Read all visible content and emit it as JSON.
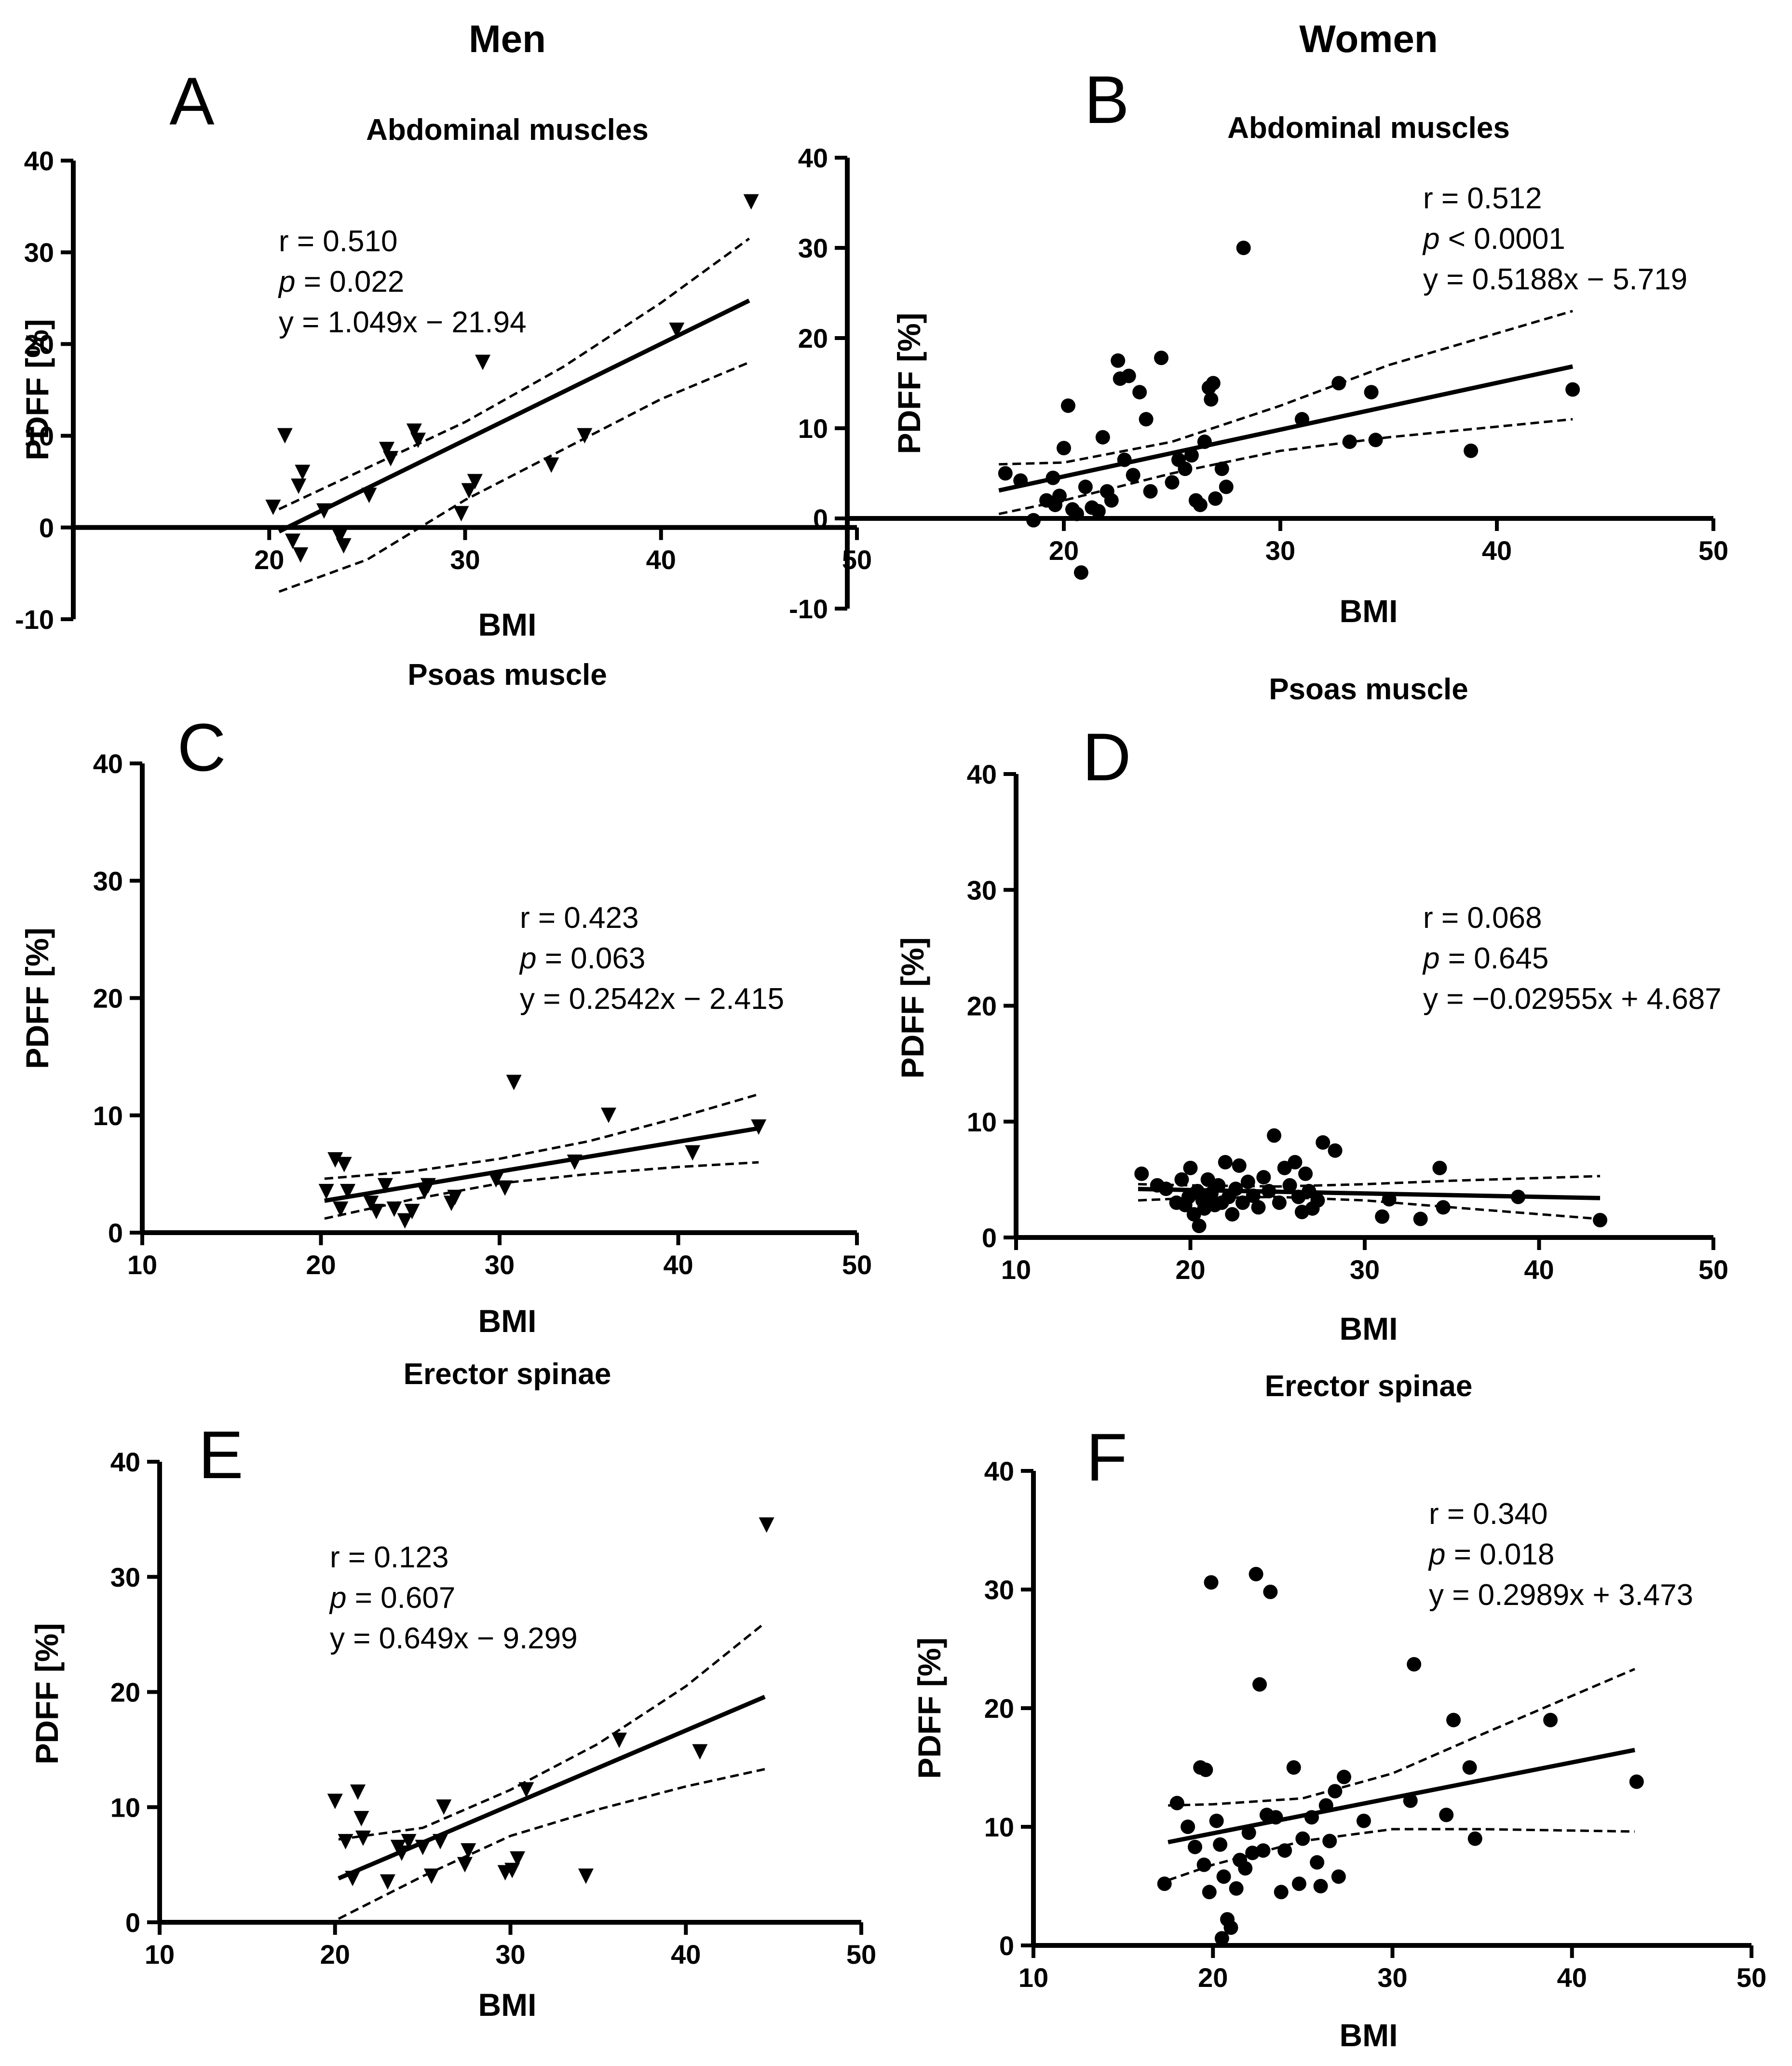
{
  "columns": {
    "left": "Men",
    "right": "Women"
  },
  "chart_data": [
    {
      "type": "scatter",
      "panel": "A",
      "title": "Abdominal muscles",
      "xlabel": "BMI",
      "ylabel": "PDFF  [%]",
      "xlim": [
        10,
        50
      ],
      "ylim": [
        -10,
        40
      ],
      "xticks": [
        "20",
        "30",
        "40",
        "50"
      ],
      "yticks": [
        "-10",
        "0",
        "10",
        "20",
        "30",
        "40"
      ],
      "marker": "triangle-down",
      "stats": {
        "r": "r = 0.510",
        "p_label": "p",
        "p_rest": " = 0.022",
        "eq": "y = 1.049x − 21.94"
      },
      "fit": {
        "slope": 1.049,
        "intercept": -21.94,
        "x_range": [
          20.5,
          44.5
        ]
      },
      "ci_upper": [
        [
          20.5,
          2.0
        ],
        [
          25,
          6.5
        ],
        [
          30,
          11.5
        ],
        [
          35,
          17.5
        ],
        [
          40,
          24.5
        ],
        [
          44.5,
          31.5
        ]
      ],
      "ci_lower": [
        [
          20.5,
          -7.0
        ],
        [
          25,
          -3.5
        ],
        [
          30,
          3.0
        ],
        [
          35,
          8.5
        ],
        [
          40,
          14.0
        ],
        [
          44.5,
          18.0
        ]
      ],
      "points": [
        [
          20.2,
          2.2
        ],
        [
          20.8,
          10.0
        ],
        [
          21.2,
          -1.5
        ],
        [
          21.5,
          4.5
        ],
        [
          21.7,
          6.0
        ],
        [
          21.6,
          -3.0
        ],
        [
          22.8,
          1.8
        ],
        [
          23.6,
          -1.0
        ],
        [
          23.8,
          -2.0
        ],
        [
          25.1,
          3.5
        ],
        [
          26.0,
          8.5
        ],
        [
          26.2,
          7.5
        ],
        [
          27.4,
          10.5
        ],
        [
          27.6,
          9.5
        ],
        [
          29.8,
          1.5
        ],
        [
          30.2,
          4.0
        ],
        [
          30.5,
          5.0
        ],
        [
          30.9,
          18.0
        ],
        [
          34.4,
          6.8
        ],
        [
          36.1,
          10.0
        ],
        [
          40.8,
          21.5
        ],
        [
          44.6,
          35.5
        ]
      ]
    },
    {
      "type": "scatter",
      "panel": "B",
      "title": "Abdominal muscles",
      "xlabel": "BMI",
      "ylabel": "PDFF  [%]",
      "xlim": [
        10,
        50
      ],
      "ylim": [
        -10,
        40
      ],
      "xticks": [
        "20",
        "30",
        "40",
        "50"
      ],
      "yticks": [
        "-10",
        "0",
        "10",
        "20",
        "30",
        "40"
      ],
      "marker": "circle",
      "stats": {
        "r": "r = 0.512",
        "p_label": "p",
        "p_rest": " < 0.0001",
        "eq": "y = 0.5188x − 5.719"
      },
      "fit": {
        "slope": 0.5188,
        "intercept": -5.719,
        "x_range": [
          17,
          43.5
        ]
      },
      "ci_upper": [
        [
          17,
          6.0
        ],
        [
          20,
          6.2
        ],
        [
          25,
          8.5
        ],
        [
          30,
          12.5
        ],
        [
          35,
          17.0
        ],
        [
          43.5,
          23.0
        ]
      ],
      "ci_lower": [
        [
          17,
          0.5
        ],
        [
          20,
          2.0
        ],
        [
          25,
          5.0
        ],
        [
          30,
          7.5
        ],
        [
          35,
          9.0
        ],
        [
          43.5,
          11.0
        ]
      ],
      "points": [
        [
          17.3,
          5.0
        ],
        [
          18.0,
          4.2
        ],
        [
          18.6,
          -0.2
        ],
        [
          19.2,
          2.0
        ],
        [
          19.5,
          4.5
        ],
        [
          19.6,
          1.5
        ],
        [
          19.8,
          2.5
        ],
        [
          20.0,
          7.8
        ],
        [
          20.2,
          12.5
        ],
        [
          20.4,
          1.0
        ],
        [
          20.6,
          0.5
        ],
        [
          20.8,
          -6.0
        ],
        [
          21.0,
          3.5
        ],
        [
          21.3,
          1.2
        ],
        [
          21.6,
          0.8
        ],
        [
          21.8,
          9.0
        ],
        [
          22.0,
          3.0
        ],
        [
          22.2,
          2.0
        ],
        [
          22.5,
          17.5
        ],
        [
          22.6,
          15.5
        ],
        [
          22.8,
          6.5
        ],
        [
          23.0,
          15.8
        ],
        [
          23.2,
          4.8
        ],
        [
          23.5,
          14.0
        ],
        [
          23.8,
          11.0
        ],
        [
          24.0,
          3.0
        ],
        [
          24.5,
          17.8
        ],
        [
          25.0,
          4.0
        ],
        [
          25.3,
          6.5
        ],
        [
          25.6,
          5.5
        ],
        [
          25.9,
          7.0
        ],
        [
          26.1,
          2.0
        ],
        [
          26.3,
          1.5
        ],
        [
          26.5,
          8.5
        ],
        [
          26.7,
          14.5
        ],
        [
          26.8,
          13.2
        ],
        [
          26.9,
          15.0
        ],
        [
          27.0,
          2.2
        ],
        [
          27.3,
          5.5
        ],
        [
          27.5,
          3.5
        ],
        [
          28.3,
          30.0
        ],
        [
          31.0,
          11.0
        ],
        [
          32.7,
          15.0
        ],
        [
          33.2,
          8.5
        ],
        [
          34.2,
          14.0
        ],
        [
          34.4,
          8.7
        ],
        [
          38.8,
          7.5
        ],
        [
          43.5,
          14.3
        ]
      ]
    },
    {
      "type": "scatter",
      "panel": "C",
      "title": "Psoas muscle",
      "xlabel": "BMI",
      "ylabel": "PDFF  [%]",
      "xlim": [
        10,
        50
      ],
      "ylim": [
        0,
        40
      ],
      "xticks": [
        "10",
        "20",
        "30",
        "40",
        "50"
      ],
      "yticks": [
        "0",
        "10",
        "20",
        "30",
        "40"
      ],
      "marker": "triangle-down",
      "stats": {
        "r": "r = 0.423",
        "p_label": "p",
        "p_rest": " = 0.063",
        "eq": "y = 0.2542x − 2.415"
      },
      "fit": {
        "slope": 0.2542,
        "intercept": -2.415,
        "x_range": [
          20.2,
          44.5
        ]
      },
      "ci_upper": [
        [
          20.2,
          4.6
        ],
        [
          25,
          5.2
        ],
        [
          30,
          6.3
        ],
        [
          35,
          7.8
        ],
        [
          40,
          9.8
        ],
        [
          44.5,
          11.8
        ]
      ],
      "ci_lower": [
        [
          20.2,
          1.2
        ],
        [
          25,
          2.8
        ],
        [
          30,
          4.2
        ],
        [
          35,
          5.0
        ],
        [
          40,
          5.6
        ],
        [
          44.5,
          6.0
        ]
      ],
      "points": [
        [
          20.3,
          3.5
        ],
        [
          20.8,
          6.2
        ],
        [
          21.1,
          2.0
        ],
        [
          21.3,
          5.8
        ],
        [
          21.5,
          3.5
        ],
        [
          22.8,
          2.5
        ],
        [
          23.1,
          1.8
        ],
        [
          23.6,
          4.0
        ],
        [
          24.1,
          2.0
        ],
        [
          24.7,
          1.0
        ],
        [
          25.1,
          1.8
        ],
        [
          25.8,
          3.5
        ],
        [
          26.0,
          4.0
        ],
        [
          27.3,
          2.5
        ],
        [
          27.5,
          3.0
        ],
        [
          29.8,
          4.5
        ],
        [
          30.3,
          3.8
        ],
        [
          30.8,
          12.8
        ],
        [
          34.2,
          6.0
        ],
        [
          36.1,
          10.0
        ],
        [
          40.8,
          6.8
        ],
        [
          44.5,
          9.0
        ]
      ]
    },
    {
      "type": "scatter",
      "panel": "D",
      "title": "Psoas muscle",
      "xlabel": "BMI",
      "ylabel": "PDFF  [%]",
      "xlim": [
        10,
        50
      ],
      "ylim": [
        0,
        40
      ],
      "xticks": [
        "10",
        "20",
        "30",
        "40",
        "50"
      ],
      "yticks": [
        "0",
        "10",
        "20",
        "30",
        "40"
      ],
      "marker": "circle",
      "stats": {
        "r": "r = 0.068",
        "p_label": "p",
        "p_rest": " = 0.645",
        "eq": "y = −0.02955x + 4.687"
      },
      "fit": {
        "slope": -0.02955,
        "intercept": 4.687,
        "x_range": [
          17,
          43.5
        ]
      },
      "ci_upper": [
        [
          17,
          4.6
        ],
        [
          20,
          4.5
        ],
        [
          25,
          4.4
        ],
        [
          30,
          4.6
        ],
        [
          35,
          4.9
        ],
        [
          43.5,
          5.3
        ]
      ],
      "ci_lower": [
        [
          17,
          3.2
        ],
        [
          20,
          3.4
        ],
        [
          25,
          3.5
        ],
        [
          30,
          3.2
        ],
        [
          35,
          2.6
        ],
        [
          43.5,
          1.6
        ]
      ],
      "points": [
        [
          17.2,
          5.5
        ],
        [
          18.1,
          4.5
        ],
        [
          18.6,
          4.2
        ],
        [
          19.2,
          3.0
        ],
        [
          19.5,
          5.0
        ],
        [
          19.7,
          2.8
        ],
        [
          19.9,
          3.5
        ],
        [
          20.0,
          6.0
        ],
        [
          20.2,
          2.0
        ],
        [
          20.4,
          4.0
        ],
        [
          20.5,
          1.0
        ],
        [
          20.7,
          3.2
        ],
        [
          20.8,
          2.5
        ],
        [
          21.0,
          5.0
        ],
        [
          21.2,
          3.8
        ],
        [
          21.4,
          2.8
        ],
        [
          21.6,
          4.5
        ],
        [
          21.8,
          3.0
        ],
        [
          22.0,
          6.5
        ],
        [
          22.2,
          3.5
        ],
        [
          22.4,
          2.0
        ],
        [
          22.6,
          4.2
        ],
        [
          22.8,
          6.2
        ],
        [
          23.0,
          3.0
        ],
        [
          23.3,
          4.8
        ],
        [
          23.6,
          3.6
        ],
        [
          23.9,
          2.6
        ],
        [
          24.2,
          5.2
        ],
        [
          24.5,
          4.0
        ],
        [
          24.8,
          8.8
        ],
        [
          25.1,
          3.0
        ],
        [
          25.4,
          6.0
        ],
        [
          25.7,
          4.5
        ],
        [
          26.0,
          6.5
        ],
        [
          26.2,
          3.5
        ],
        [
          26.4,
          2.2
        ],
        [
          26.6,
          5.5
        ],
        [
          26.8,
          4.0
        ],
        [
          27.0,
          2.5
        ],
        [
          27.3,
          3.2
        ],
        [
          27.6,
          8.2
        ],
        [
          28.3,
          7.5
        ],
        [
          31.0,
          1.8
        ],
        [
          31.4,
          3.3
        ],
        [
          33.2,
          1.6
        ],
        [
          34.3,
          6.0
        ],
        [
          34.5,
          2.6
        ],
        [
          38.8,
          3.5
        ],
        [
          43.5,
          1.5
        ]
      ]
    },
    {
      "type": "scatter",
      "panel": "E",
      "title": "Erector spinae",
      "xlabel": "BMI",
      "ylabel": "PDFF  [%]",
      "xlim": [
        10,
        50
      ],
      "ylim": [
        0,
        40
      ],
      "xticks": [
        "10",
        "20",
        "30",
        "40",
        "50"
      ],
      "yticks": [
        "0",
        "10",
        "20",
        "30",
        "40"
      ],
      "marker": "triangle-down",
      "stats": {
        "r": "r = 0.123",
        "p_label": "p",
        "p_rest": " = 0.607",
        "eq": "y = 0.649x − 9.299"
      },
      "fit": {
        "slope": 0.649,
        "intercept": -9.299,
        "x_range": [
          20.2,
          44.5
        ]
      },
      "ci_upper": [
        [
          20.2,
          7.2
        ],
        [
          25,
          8.2
        ],
        [
          30,
          11.5
        ],
        [
          35,
          15.5
        ],
        [
          40,
          20.5
        ],
        [
          44.5,
          26.0
        ]
      ],
      "ci_lower": [
        [
          20.2,
          0.3
        ],
        [
          25,
          4.0
        ],
        [
          30,
          7.5
        ],
        [
          35,
          9.8
        ],
        [
          40,
          11.8
        ],
        [
          44.5,
          13.3
        ]
      ],
      "points": [
        [
          20.0,
          10.5
        ],
        [
          20.6,
          7.0
        ],
        [
          21.0,
          3.8
        ],
        [
          21.3,
          11.3
        ],
        [
          21.5,
          9.0
        ],
        [
          21.6,
          7.3
        ],
        [
          23.0,
          3.5
        ],
        [
          23.6,
          6.5
        ],
        [
          23.8,
          6.0
        ],
        [
          24.2,
          7.0
        ],
        [
          25.0,
          6.5
        ],
        [
          25.5,
          4.0
        ],
        [
          26.0,
          7.0
        ],
        [
          26.2,
          10.0
        ],
        [
          27.4,
          5.0
        ],
        [
          27.6,
          6.2
        ],
        [
          29.7,
          4.3
        ],
        [
          30.1,
          4.5
        ],
        [
          30.4,
          5.5
        ],
        [
          30.9,
          11.5
        ],
        [
          34.3,
          4.0
        ],
        [
          36.2,
          15.8
        ],
        [
          40.8,
          14.8
        ],
        [
          44.6,
          34.5
        ]
      ]
    },
    {
      "type": "scatter",
      "panel": "F",
      "title": "Erector spinae",
      "xlabel": "BMI",
      "ylabel": "PDFF  [%]",
      "xlim": [
        10,
        50
      ],
      "ylim": [
        0,
        40
      ],
      "xticks": [
        "10",
        "20",
        "30",
        "40",
        "50"
      ],
      "yticks": [
        "0",
        "10",
        "20",
        "30",
        "40"
      ],
      "marker": "circle",
      "stats": {
        "r": "r = 0.340",
        "p_label": "p",
        "p_rest": " = 0.018",
        "eq": "y = 0.2989x + 3.473"
      },
      "fit": {
        "slope": 0.2989,
        "intercept": 3.473,
        "x_range": [
          17.5,
          43.5
        ]
      },
      "ci_upper": [
        [
          17.5,
          11.8
        ],
        [
          20,
          11.9
        ],
        [
          25,
          12.4
        ],
        [
          30,
          14.5
        ],
        [
          35,
          17.8
        ],
        [
          43.5,
          23.3
        ]
      ],
      "ci_lower": [
        [
          17.5,
          5.5
        ],
        [
          20,
          6.8
        ],
        [
          25,
          8.8
        ],
        [
          30,
          9.8
        ],
        [
          35,
          9.8
        ],
        [
          43.5,
          9.6
        ]
      ],
      "points": [
        [
          17.3,
          5.2
        ],
        [
          18.0,
          12.0
        ],
        [
          18.6,
          10.0
        ],
        [
          19.0,
          8.3
        ],
        [
          19.3,
          15.0
        ],
        [
          19.5,
          6.8
        ],
        [
          19.6,
          14.8
        ],
        [
          19.8,
          4.5
        ],
        [
          19.9,
          30.6
        ],
        [
          20.2,
          10.5
        ],
        [
          20.4,
          8.5
        ],
        [
          20.5,
          0.6
        ],
        [
          20.6,
          5.8
        ],
        [
          20.8,
          2.2
        ],
        [
          21.0,
          1.5
        ],
        [
          21.3,
          4.8
        ],
        [
          21.5,
          7.2
        ],
        [
          21.8,
          6.5
        ],
        [
          22.0,
          9.5
        ],
        [
          22.2,
          7.8
        ],
        [
          22.4,
          31.3
        ],
        [
          22.6,
          22.0
        ],
        [
          22.8,
          8.0
        ],
        [
          23.0,
          11.0
        ],
        [
          23.2,
          29.8
        ],
        [
          23.5,
          10.8
        ],
        [
          23.8,
          4.5
        ],
        [
          24.0,
          8.0
        ],
        [
          24.5,
          15.0
        ],
        [
          24.8,
          5.2
        ],
        [
          25.0,
          9.0
        ],
        [
          25.5,
          10.8
        ],
        [
          25.8,
          7.0
        ],
        [
          26.0,
          5.0
        ],
        [
          26.3,
          11.8
        ],
        [
          26.5,
          8.8
        ],
        [
          26.8,
          13.0
        ],
        [
          27.0,
          5.8
        ],
        [
          27.3,
          14.2
        ],
        [
          28.4,
          10.5
        ],
        [
          31.0,
          12.2
        ],
        [
          31.2,
          23.7
        ],
        [
          33.0,
          11.0
        ],
        [
          33.4,
          19.0
        ],
        [
          34.3,
          15.0
        ],
        [
          34.6,
          9.0
        ],
        [
          38.8,
          19.0
        ],
        [
          43.6,
          13.8
        ]
      ]
    }
  ]
}
